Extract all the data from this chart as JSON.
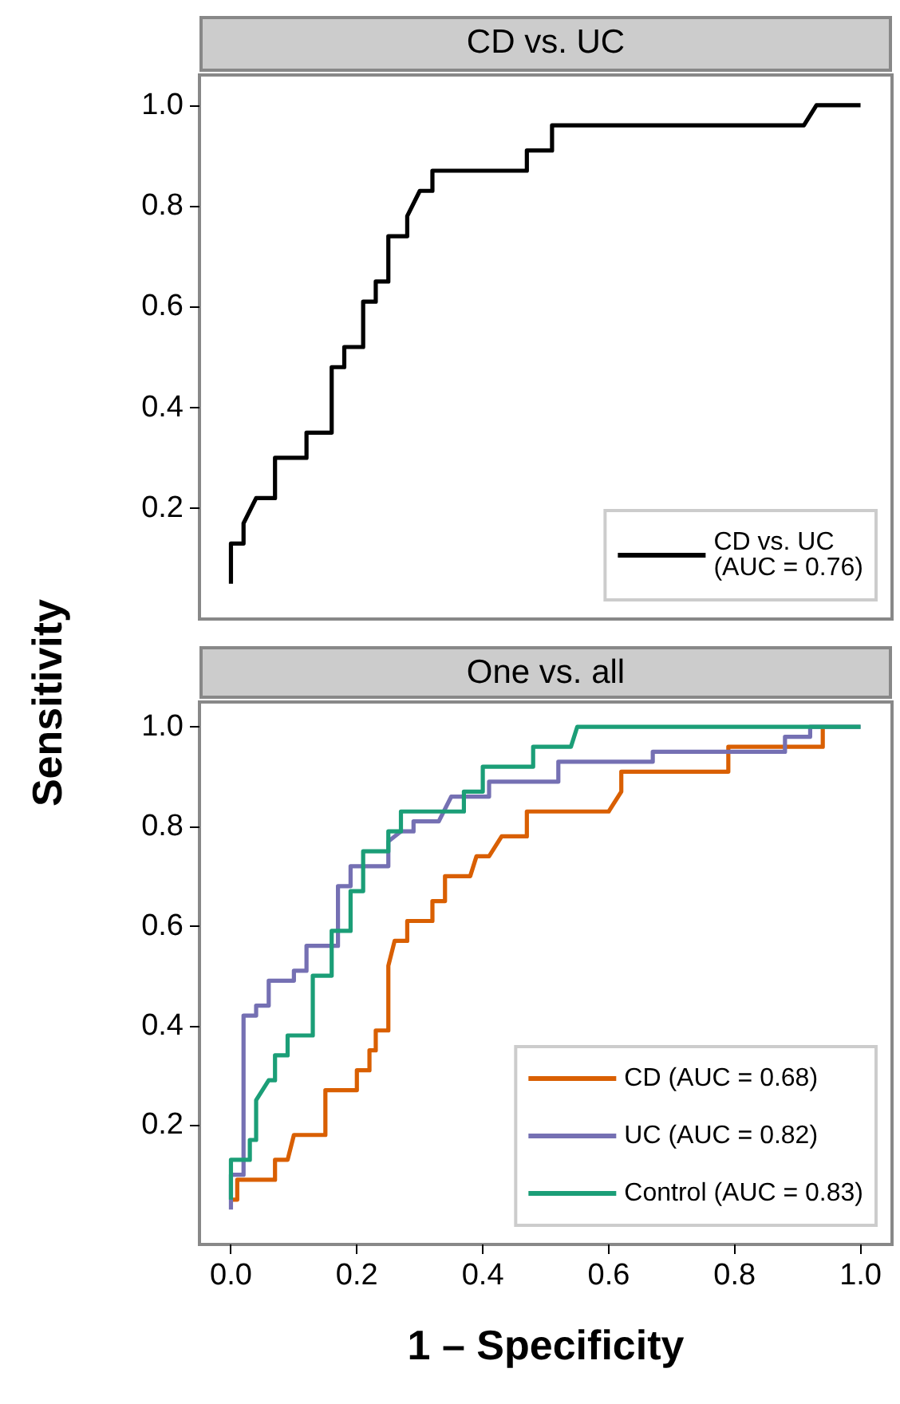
{
  "chart_data": [
    {
      "type": "line",
      "title": "CD vs. UC",
      "ylabel": "Sensitivity",
      "marker": "none",
      "line_style": "solid",
      "grid": false,
      "legend": "bottom right",
      "tick_labels": "y",
      "xlim": [
        -0.05,
        1.05
      ],
      "ylim": [
        -0.02,
        1.06
      ],
      "yticks": [
        {
          "value": 0.2,
          "label": "0.2"
        },
        {
          "value": 0.4,
          "label": "0.4"
        },
        {
          "value": 0.6,
          "label": "0.6"
        },
        {
          "value": 0.8,
          "label": "0.8"
        },
        {
          "value": 1,
          "label": "1.0"
        }
      ],
      "series": [
        {
          "name": "CD vs. UC (AUC = 0.76)",
          "color": "#000000",
          "x": [
            0,
            0,
            0.02,
            0.02,
            0.04,
            0.07,
            0.07,
            0.12,
            0.12,
            0.16,
            0.16,
            0.18,
            0.18,
            0.21,
            0.21,
            0.23,
            0.23,
            0.25,
            0.25,
            0.28,
            0.28,
            0.3,
            0.32,
            0.32,
            0.47,
            0.47,
            0.51,
            0.51,
            0.91,
            0.93,
            1
          ],
          "values": [
            0.05,
            0.13,
            0.13,
            0.17,
            0.22,
            0.22,
            0.3,
            0.3,
            0.35,
            0.35,
            0.48,
            0.48,
            0.52,
            0.52,
            0.61,
            0.61,
            0.65,
            0.65,
            0.74,
            0.74,
            0.78,
            0.83,
            0.83,
            0.87,
            0.87,
            0.91,
            0.91,
            0.96,
            0.96,
            1,
            1
          ]
        }
      ]
    },
    {
      "type": "line",
      "title": "One vs. all",
      "xlabel": "1 – Specificity",
      "marker": "none",
      "line_style": "solid",
      "grid": false,
      "legend": "bottom right",
      "xlim": [
        -0.05,
        1.05
      ],
      "xticks": [
        {
          "value": 0,
          "label": "0.0"
        },
        {
          "value": 0.2,
          "label": "0.2"
        },
        {
          "value": 0.4,
          "label": "0.4"
        },
        {
          "value": 0.6,
          "label": "0.6"
        },
        {
          "value": 0.8,
          "label": "0.8"
        },
        {
          "value": 1,
          "label": "1.0"
        }
      ],
      "ylim": [
        -0.04,
        1.05
      ],
      "yticks": [
        {
          "value": 0.2,
          "label": "0.2"
        },
        {
          "value": 0.4,
          "label": "0.4"
        },
        {
          "value": 0.6,
          "label": "0.6"
        },
        {
          "value": 0.8,
          "label": "0.8"
        },
        {
          "value": 1,
          "label": "1.0"
        }
      ],
      "series": [
        {
          "name": "CD (AUC = 0.68)",
          "color": "#d95f02",
          "x": [
            0,
            0.01,
            0.01,
            0.07,
            0.07,
            0.09,
            0.1,
            0.15,
            0.15,
            0.2,
            0.2,
            0.22,
            0.22,
            0.23,
            0.23,
            0.25,
            0.25,
            0.26,
            0.28,
            0.28,
            0.32,
            0.32,
            0.34,
            0.34,
            0.38,
            0.39,
            0.41,
            0.43,
            0.47,
            0.47,
            0.6,
            0.62,
            0.62,
            0.79,
            0.79,
            0.94,
            0.94
          ],
          "values": [
            0.05,
            0.05,
            0.09,
            0.09,
            0.13,
            0.13,
            0.18,
            0.18,
            0.27,
            0.27,
            0.31,
            0.31,
            0.35,
            0.35,
            0.39,
            0.39,
            0.52,
            0.57,
            0.57,
            0.61,
            0.61,
            0.65,
            0.65,
            0.7,
            0.7,
            0.74,
            0.74,
            0.78,
            0.78,
            0.83,
            0.83,
            0.87,
            0.91,
            0.91,
            0.96,
            0.96,
            1
          ]
        },
        {
          "name": "UC (AUC = 0.82)",
          "color": "#7570b3",
          "x": [
            0,
            0,
            0.02,
            0.02,
            0.04,
            0.04,
            0.06,
            0.06,
            0.1,
            0.1,
            0.12,
            0.12,
            0.17,
            0.17,
            0.19,
            0.19,
            0.25,
            0.25,
            0.27,
            0.29,
            0.29,
            0.33,
            0.35,
            0.41,
            0.41,
            0.52,
            0.52,
            0.67,
            0.67,
            0.88,
            0.88,
            0.92,
            0.92,
            1
          ],
          "values": [
            0.03,
            0.1,
            0.1,
            0.42,
            0.42,
            0.44,
            0.44,
            0.49,
            0.49,
            0.51,
            0.51,
            0.56,
            0.56,
            0.68,
            0.68,
            0.72,
            0.72,
            0.77,
            0.79,
            0.79,
            0.81,
            0.81,
            0.86,
            0.86,
            0.89,
            0.89,
            0.93,
            0.93,
            0.95,
            0.95,
            0.98,
            0.98,
            1,
            1
          ]
        },
        {
          "name": "Control (AUC = 0.83)",
          "color": "#1b9e77",
          "x": [
            0,
            0,
            0.03,
            0.03,
            0.04,
            0.04,
            0.06,
            0.07,
            0.07,
            0.09,
            0.09,
            0.13,
            0.13,
            0.16,
            0.16,
            0.19,
            0.19,
            0.21,
            0.21,
            0.25,
            0.25,
            0.27,
            0.27,
            0.37,
            0.37,
            0.4,
            0.4,
            0.48,
            0.48,
            0.54,
            0.55,
            1
          ],
          "values": [
            0.05,
            0.13,
            0.13,
            0.17,
            0.17,
            0.25,
            0.29,
            0.29,
            0.34,
            0.34,
            0.38,
            0.38,
            0.5,
            0.5,
            0.59,
            0.59,
            0.67,
            0.67,
            0.75,
            0.75,
            0.79,
            0.79,
            0.83,
            0.83,
            0.87,
            0.87,
            0.92,
            0.92,
            0.96,
            0.96,
            1,
            1
          ]
        }
      ]
    }
  ]
}
